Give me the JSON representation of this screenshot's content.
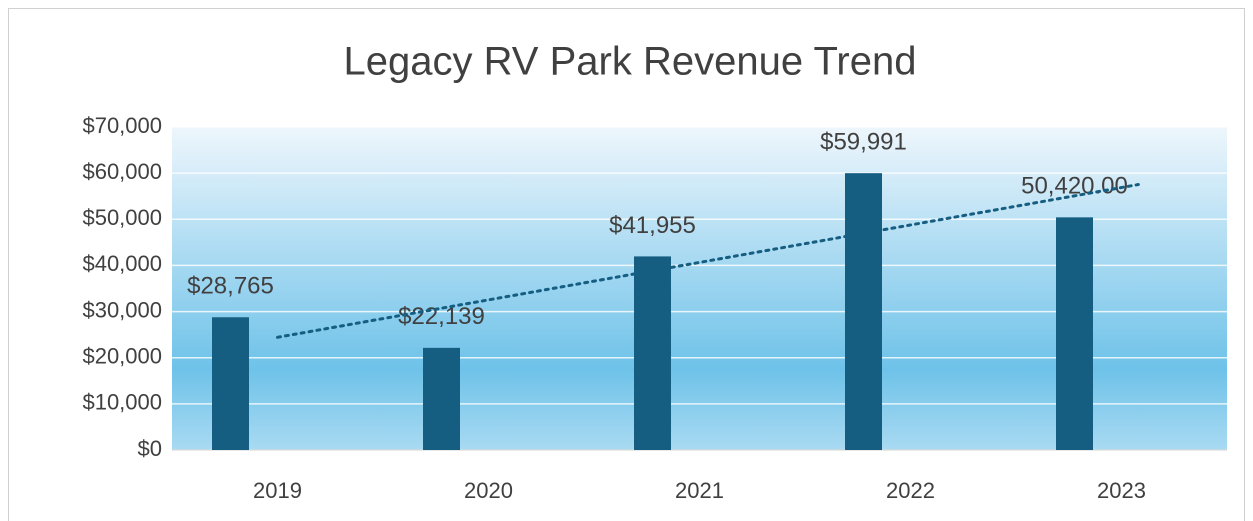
{
  "chart_data": {
    "type": "bar",
    "title": "Legacy RV Park Revenue Trend",
    "categories": [
      "2019",
      "2020",
      "2021",
      "2022",
      "2023"
    ],
    "values": [
      28765,
      22139,
      41955,
      59991,
      50420
    ],
    "value_labels": [
      "$28,765",
      "$22,139",
      "$41,955",
      "$59,991",
      "50,420.00"
    ],
    "color": "#155e82",
    "ylim": [
      0,
      70000
    ],
    "yticks": [
      {
        "value": 0,
        "label": "$0"
      },
      {
        "value": 10000,
        "label": "$10,000"
      },
      {
        "value": 20000,
        "label": "$20,000"
      },
      {
        "value": 30000,
        "label": "$30,000"
      },
      {
        "value": 40000,
        "label": "$40,000"
      },
      {
        "value": 50000,
        "label": "$50,000"
      },
      {
        "value": 60000,
        "label": "$60,000"
      },
      {
        "value": 70000,
        "label": "$70,000"
      }
    ],
    "grid": true,
    "trendline": "linear",
    "trendline_color": "#155e82"
  }
}
